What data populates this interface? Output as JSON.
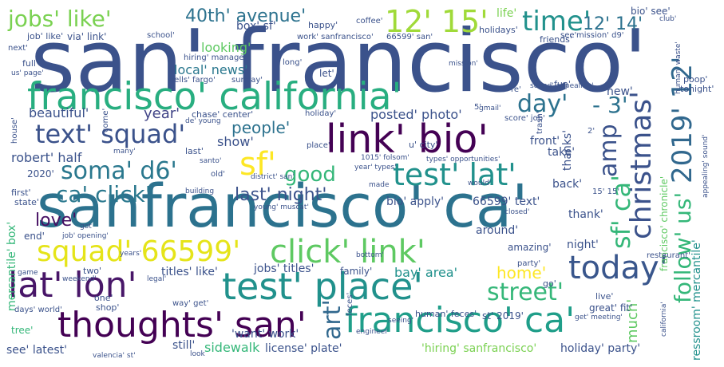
{
  "words": [
    {
      "text": "san' francisco'",
      "color": "#3b528b"
    },
    {
      "text": "sanfrancisco' ca'",
      "color": "#2c728e"
    },
    {
      "text": "francisco' california'",
      "color": "#28ae80"
    },
    {
      "text": "link' bio'",
      "color": "#440154"
    },
    {
      "text": "thoughts' san'",
      "color": "#440154"
    },
    {
      "text": "lat' lon'",
      "color": "#481668"
    },
    {
      "text": "test' place'",
      "color": "#21918c"
    },
    {
      "text": "francisco' ca'",
      "color": "#1f9e89"
    },
    {
      "text": "test' lat'",
      "color": "#21918c"
    },
    {
      "text": "squad' 66599'",
      "color": "#e5e419"
    },
    {
      "text": "click' link'",
      "color": "#5ec962"
    },
    {
      "text": "text' squad'",
      "color": "#3b528b"
    },
    {
      "text": "jobs' like'",
      "color": "#7ad151"
    },
    {
      "text": "12' 15'",
      "color": "#a0da39"
    },
    {
      "text": "time'",
      "color": "#21918c"
    },
    {
      "text": "christmas'",
      "color": "#3b528b"
    },
    {
      "text": "2019' 12'",
      "color": "#31688e"
    },
    {
      "text": "follow' us'",
      "color": "#35b779"
    },
    {
      "text": "today'",
      "color": "#39568c"
    },
    {
      "text": "soma' d6'",
      "color": "#2a788e"
    },
    {
      "text": "ca' click'",
      "color": "#2a788e"
    },
    {
      "text": "sf'",
      "color": "#fde725"
    },
    {
      "text": "street'",
      "color": "#35b779"
    },
    {
      "text": "art'",
      "color": "#31688e"
    },
    {
      "text": "amp",
      "color": "#3b528b"
    },
    {
      "text": "sf' ca'",
      "color": "#35b779"
    },
    {
      "text": "day'",
      "color": "#2c728e"
    },
    {
      "text": "- 3'",
      "color": "#2c728e"
    },
    {
      "text": "40th' avenue'",
      "color": "#2c728e"
    },
    {
      "text": "12' 14'",
      "color": "#2c728e"
    },
    {
      "text": "good",
      "color": "#35b779"
    },
    {
      "text": "last' night'",
      "color": "#3b528b"
    },
    {
      "text": "love'",
      "color": "#471063"
    },
    {
      "text": "people'",
      "color": "#2c728e"
    },
    {
      "text": "home'",
      "color": "#fde725"
    },
    {
      "text": "much'",
      "color": "#5ec962"
    },
    {
      "text": "year'",
      "color": "#414487"
    },
    {
      "text": "local' news'",
      "color": "#2a788e"
    },
    {
      "text": "looking'",
      "color": "#5ec962"
    },
    {
      "text": "robert' half",
      "color": "#3b528b"
    },
    {
      "text": "beautiful'",
      "color": "#3b528b"
    },
    {
      "text": "show'",
      "color": "#3b528b"
    },
    {
      "text": "posted' photo'",
      "color": "#3b528b"
    },
    {
      "text": "sidewalk",
      "color": "#35b779"
    },
    {
      "text": "license' plate'",
      "color": "#3b528b"
    },
    {
      "text": "'hiring' sanfrancisco'",
      "color": "#7ad151"
    },
    {
      "text": "holiday' party'",
      "color": "#3b528b"
    },
    {
      "text": "see' latest'",
      "color": "#3b528b"
    },
    {
      "text": "still'",
      "color": "#3b528b"
    },
    {
      "text": "bay' area'",
      "color": "#21918c"
    },
    {
      "text": "jobs' titles'",
      "color": "#3b528b"
    },
    {
      "text": "titles' like'",
      "color": "#3b528b"
    },
    {
      "text": "'want' work'",
      "color": "#3b528b"
    },
    {
      "text": "around'",
      "color": "#3b528b"
    },
    {
      "text": "amazing'",
      "color": "#3b528b"
    },
    {
      "text": "night'",
      "color": "#3b528b"
    },
    {
      "text": "take'",
      "color": "#3b528b"
    },
    {
      "text": "thank'",
      "color": "#3b528b"
    },
    {
      "text": "thanks'",
      "color": "#3b528b"
    },
    {
      "text": "front'",
      "color": "#3b528b"
    },
    {
      "text": "back'",
      "color": "#3b528b"
    },
    {
      "text": "bio' apply'",
      "color": "#3b528b"
    },
    {
      "text": "66599' text'",
      "color": "#3b528b"
    },
    {
      "text": "new'",
      "color": "#3b528b"
    },
    {
      "text": "life'",
      "color": "#7ad151"
    },
    {
      "text": "bio' see'",
      "color": "#3b528b"
    },
    {
      "text": "box' sf'",
      "color": "#3b528b"
    },
    {
      "text": "mercantile' box'",
      "color": "#35b779"
    },
    {
      "text": "ressroom' mercantile'",
      "color": "#21918c"
    },
    {
      "text": "francisco' chronicle'",
      "color": "#5ec962"
    },
    {
      "text": "end'",
      "color": "#3b528b"
    },
    {
      "text": "2020'",
      "color": "#3b528b"
    },
    {
      "text": "first'",
      "color": "#3b528b"
    },
    {
      "text": "state'",
      "color": "#3b528b"
    },
    {
      "text": "family'",
      "color": "#3b528b"
    },
    {
      "text": "two'",
      "color": "#3b528b"
    },
    {
      "text": "one'",
      "color": "#3b528b"
    },
    {
      "text": "shop'",
      "color": "#3b528b"
    },
    {
      "text": "tree'",
      "color": "#35b779"
    },
    {
      "text": "days' world'",
      "color": "#3b528b"
    },
    {
      "text": "great' fit'",
      "color": "#3b528b"
    },
    {
      "text": "live'",
      "color": "#3b528b"
    },
    {
      "text": "st' 2019'",
      "color": "#3b528b"
    },
    {
      "text": "human' feces'",
      "color": "#3b528b"
    },
    {
      "text": "feces'",
      "color": "#3b528b"
    },
    {
      "text": "restaurant'",
      "color": "#3b528b"
    },
    {
      "text": "party'",
      "color": "#3b528b"
    },
    {
      "text": "go'",
      "color": "#3b528b"
    },
    {
      "text": "let'",
      "color": "#3b528b"
    },
    {
      "text": "long'",
      "color": "#3b528b"
    },
    {
      "text": "friends'",
      "color": "#3b528b"
    },
    {
      "text": "holidays'",
      "color": "#3b528b"
    },
    {
      "text": "happy'",
      "color": "#3b528b"
    },
    {
      "text": "via' link'",
      "color": "#3b528b"
    },
    {
      "text": "job' like'",
      "color": "#3b528b"
    },
    {
      "text": "next'",
      "color": "#3b528b"
    },
    {
      "text": "full'",
      "color": "#3b528b"
    },
    {
      "text": "hiring' manager'",
      "color": "#3b528b"
    },
    {
      "text": "wells' fargo'",
      "color": "#3b528b"
    },
    {
      "text": "sunday'",
      "color": "#3b528b"
    },
    {
      "text": "coffee'",
      "color": "#3b528b"
    },
    {
      "text": "school'",
      "color": "#3b528b"
    },
    {
      "text": "work' sanfrancisco'",
      "color": "#3b528b"
    },
    {
      "text": "66599' san'",
      "color": "#3b528b"
    },
    {
      "text": "mission' d9'",
      "color": "#3b528b"
    },
    {
      "text": "fun'",
      "color": "#3b528b"
    },
    {
      "text": "poop'",
      "color": "#3b528b"
    },
    {
      "text": "tonight'",
      "color": "#3b528b"
    },
    {
      "text": "chase' center'",
      "color": "#3b528b"
    },
    {
      "text": "holiday'",
      "color": "#3b528b"
    },
    {
      "text": "score' job'",
      "color": "#3b528b"
    },
    {
      "text": "house'",
      "color": "#3b528b"
    },
    {
      "text": "come'",
      "color": "#3b528b"
    },
    {
      "text": "last'",
      "color": "#3b528b"
    },
    {
      "text": "place'",
      "color": "#3b528b"
    },
    {
      "text": "u' city'",
      "color": "#3b528b"
    },
    {
      "text": "1015' folsom'",
      "color": "#3b528b"
    },
    {
      "text": "types' opportunities'",
      "color": "#3b528b"
    },
    {
      "text": "year' types'",
      "color": "#3b528b"
    },
    {
      "text": "trash'",
      "color": "#3b528b"
    },
    {
      "text": "old'",
      "color": "#3b528b"
    },
    {
      "text": "district' san'",
      "color": "#3b528b"
    },
    {
      "text": "building",
      "color": "#3b528b"
    },
    {
      "text": "made",
      "color": "#3b528b"
    },
    {
      "text": "got",
      "color": "#3b528b"
    },
    {
      "text": "job' opening'",
      "color": "#3b528b"
    },
    {
      "text": "years'",
      "color": "#3b528b"
    },
    {
      "text": "game",
      "color": "#3b528b"
    },
    {
      "text": "weekend'",
      "color": "#3b528b"
    },
    {
      "text": "legal'",
      "color": "#3b528b"
    },
    {
      "text": "bottom'",
      "color": "#3b528b"
    },
    {
      "text": "young' muscat'",
      "color": "#3b528b"
    },
    {
      "text": "15' 15'",
      "color": "#3b528b"
    },
    {
      "text": "closed'",
      "color": "#3b528b"
    },
    {
      "text": "2'",
      "color": "#3b528b"
    },
    {
      "text": "5'",
      "color": "#3b528b"
    },
    {
      "text": "re'",
      "color": "#3b528b"
    },
    {
      "text": "way' get'",
      "color": "#3b528b"
    },
    {
      "text": "get' meeting'",
      "color": "#3b528b"
    },
    {
      "text": "engineer",
      "color": "#3b528b"
    },
    {
      "text": "seeing'",
      "color": "#3b528b"
    },
    {
      "text": "valencia' st'",
      "color": "#3b528b"
    },
    {
      "text": "look",
      "color": "#3b528b"
    },
    {
      "text": "see'",
      "color": "#3b528b"
    },
    {
      "text": "us' page'",
      "color": "#3b528b"
    },
    {
      "text": "many'",
      "color": "#3b528b"
    },
    {
      "text": "de' young",
      "color": "#3b528b"
    },
    {
      "text": "santo'",
      "color": "#3b528b"
    },
    {
      "text": "gmail'",
      "color": "#3b528b"
    },
    {
      "text": "sound' appealing'",
      "color": "#3b528b"
    },
    {
      "text": "would'",
      "color": "#3b528b"
    },
    {
      "text": "mission'",
      "color": "#3b528b"
    },
    {
      "text": "human' waste'",
      "color": "#3b528b"
    },
    {
      "text": "club'",
      "color": "#3b528b"
    },
    {
      "text": "appealing' sound'",
      "color": "#3b528b"
    },
    {
      "text": "california'",
      "color": "#3b528b"
    }
  ]
}
